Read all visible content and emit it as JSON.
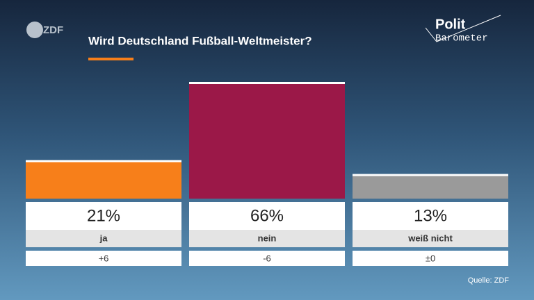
{
  "logo": "ZDF",
  "brand": {
    "line1": "Polit",
    "line2": "Barometer"
  },
  "source": "Quelle: ZDF",
  "chart_data": {
    "type": "bar",
    "title": "Wird Deutschland Fußball-Weltmeister?",
    "categories": [
      "ja",
      "nein",
      "weiß nicht"
    ],
    "values": [
      21,
      66,
      13
    ],
    "value_labels": [
      "21%",
      "66%",
      "13%"
    ],
    "changes": [
      6,
      -6,
      0
    ],
    "change_labels": [
      "+6",
      "-6",
      "±0"
    ],
    "colors": [
      "#f77f1a",
      "#9b1848",
      "#9a9a9a"
    ]
  }
}
